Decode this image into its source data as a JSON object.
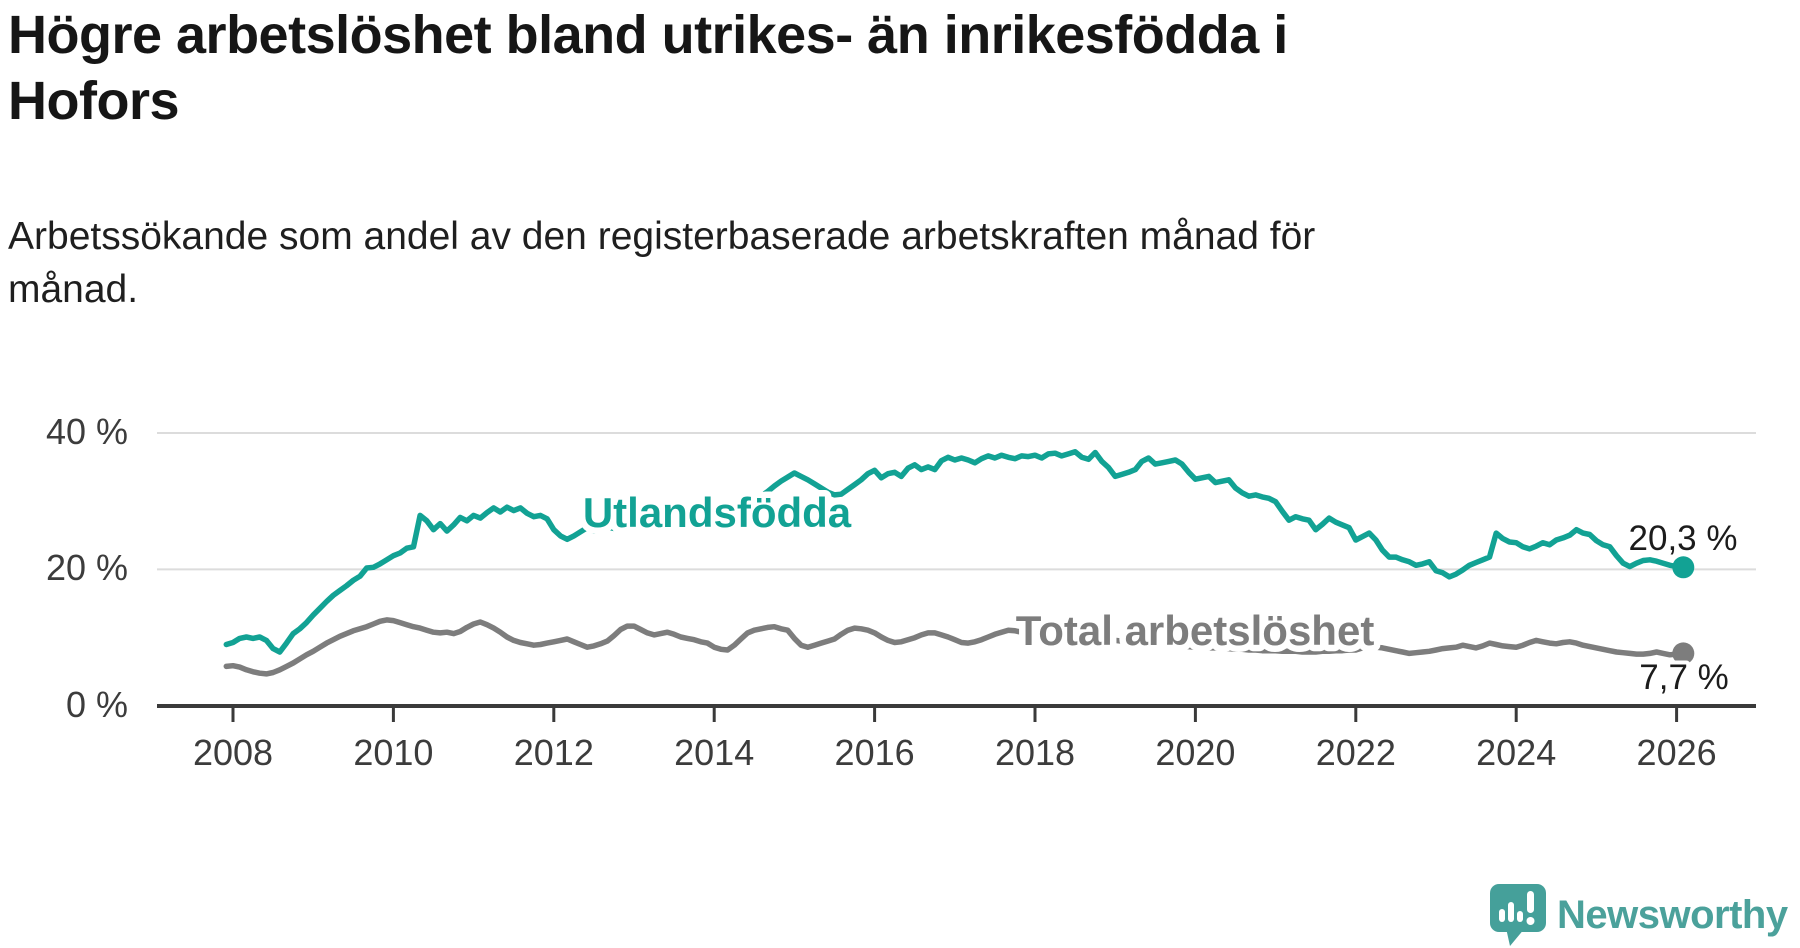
{
  "header": {
    "title_lines": [
      "Högre arbetslöshet bland utrikes- än inrikesfödda i",
      "Hofors"
    ],
    "subtitle_lines": [
      "Arbetssökande som andel av den registerbaserade arbetskraften månad för",
      "månad."
    ]
  },
  "branding": {
    "logo_text": "Newsworthy",
    "logo_icon": "speech-bubble-with-bar-chart-and-exclamation",
    "logo_color": "#45a09a"
  },
  "colors": {
    "foreign_born_line": "#12a294",
    "total_line": "#7d7d7d",
    "axis": "#3a3a3a",
    "gridline": "#dcdcdc",
    "value_label": "#1c1c1c"
  },
  "chart_data": {
    "type": "line",
    "title": "Högre arbetslöshet bland utrikes- än inrikesfödda i Hofors",
    "subtitle": "Arbetssökande som andel av den registerbaserade arbetskraften månad för månad.",
    "xlabel": "",
    "ylabel": "",
    "x_unit": "year",
    "y_unit": "%",
    "x_start": 2007.9167,
    "x_step": 0.0833,
    "xlim": [
      2007.05,
      2027.0
    ],
    "ylim": [
      0,
      42
    ],
    "grid": "horizontal",
    "legend_position": "inline-labels",
    "x_ticks": [
      2008,
      2010,
      2012,
      2014,
      2016,
      2018,
      2020,
      2022,
      2024,
      2026
    ],
    "x_tick_labels": [
      "2008",
      "2010",
      "2012",
      "2014",
      "2016",
      "2018",
      "2020",
      "2022",
      "2024",
      "2026"
    ],
    "y_ticks": [
      0,
      20,
      40
    ],
    "y_tick_labels": [
      "0 %",
      "20 %",
      "40 %"
    ],
    "series": [
      {
        "name": "Utlandsfödda",
        "color": "#12a294",
        "end_label": "20,3 %",
        "end_value": 20.3,
        "values": [
          9.0,
          9.3,
          9.9,
          10.1,
          9.9,
          10.1,
          9.6,
          8.4,
          7.9,
          9.2,
          10.6,
          11.3,
          12.2,
          13.3,
          14.3,
          15.3,
          16.2,
          16.9,
          17.6,
          18.4,
          19.0,
          20.2,
          20.3,
          20.8,
          21.4,
          22.0,
          22.4,
          23.1,
          23.3,
          27.9,
          27.1,
          25.8,
          26.7,
          25.6,
          26.5,
          27.6,
          27.1,
          27.9,
          27.5,
          28.3,
          29.0,
          28.4,
          29.1,
          28.6,
          29.0,
          28.2,
          27.7,
          27.9,
          27.4,
          25.8,
          24.9,
          24.4,
          24.9,
          25.5,
          26.1,
          25.6,
          25.9,
          26.2,
          26.0,
          26.3,
          26.5,
          26.6,
          26.9,
          27.1,
          26.8,
          27.3,
          27.6,
          27.4,
          27.9,
          28.1,
          28.4,
          28.2,
          28.6,
          28.8,
          28.5,
          29.0,
          29.2,
          29.4,
          29.6,
          30.1,
          30.7,
          31.4,
          32.2,
          32.9,
          33.5,
          34.1,
          33.6,
          33.1,
          32.5,
          31.9,
          31.3,
          30.9,
          31.0,
          31.7,
          32.4,
          33.1,
          34.0,
          34.5,
          33.4,
          34.0,
          34.2,
          33.6,
          34.8,
          35.3,
          34.6,
          35.0,
          34.6,
          35.9,
          36.4,
          36.0,
          36.3,
          36.0,
          35.6,
          36.2,
          36.6,
          36.3,
          36.7,
          36.4,
          36.2,
          36.6,
          36.5,
          36.7,
          36.3,
          36.9,
          37.0,
          36.6,
          36.9,
          37.2,
          36.4,
          36.1,
          37.1,
          35.8,
          34.9,
          33.6,
          33.9,
          34.2,
          34.6,
          35.8,
          36.3,
          35.4,
          35.6,
          35.8,
          36.0,
          35.4,
          34.2,
          33.2,
          33.4,
          33.6,
          32.7,
          32.9,
          33.1,
          31.9,
          31.2,
          30.7,
          30.9,
          30.6,
          30.4,
          29.9,
          28.5,
          27.2,
          27.7,
          27.4,
          27.2,
          25.8,
          26.6,
          27.5,
          26.9,
          26.5,
          26.1,
          24.3,
          24.8,
          25.3,
          24.3,
          22.8,
          21.8,
          21.8,
          21.4,
          21.1,
          20.6,
          20.8,
          21.1,
          19.8,
          19.5,
          18.9,
          19.3,
          19.9,
          20.6,
          21.0,
          21.4,
          21.8,
          25.3,
          24.5,
          24.0,
          23.9,
          23.3,
          23.0,
          23.4,
          23.9,
          23.6,
          24.3,
          24.6,
          25.0,
          25.8,
          25.3,
          25.1,
          24.2,
          23.6,
          23.3,
          22.0,
          20.9,
          20.4,
          20.9,
          21.3,
          21.4,
          21.2,
          20.9,
          20.6,
          20.4,
          20.3
        ]
      },
      {
        "name": "Total arbetslöshet",
        "color": "#7d7d7d",
        "end_label": "7,7 %",
        "end_value": 7.7,
        "values": [
          5.8,
          5.9,
          5.7,
          5.3,
          5.0,
          4.8,
          4.7,
          4.9,
          5.3,
          5.8,
          6.3,
          6.9,
          7.5,
          8.0,
          8.6,
          9.2,
          9.7,
          10.2,
          10.6,
          11.0,
          11.3,
          11.6,
          12.0,
          12.4,
          12.6,
          12.5,
          12.2,
          11.9,
          11.6,
          11.4,
          11.1,
          10.8,
          10.7,
          10.8,
          10.6,
          10.9,
          11.5,
          12.0,
          12.3,
          11.9,
          11.4,
          10.8,
          10.1,
          9.6,
          9.3,
          9.1,
          8.9,
          9.0,
          9.2,
          9.4,
          9.6,
          9.8,
          9.4,
          9.0,
          8.6,
          8.8,
          9.1,
          9.5,
          10.3,
          11.2,
          11.7,
          11.7,
          11.2,
          10.7,
          10.4,
          10.6,
          10.8,
          10.5,
          10.1,
          9.9,
          9.7,
          9.4,
          9.2,
          8.6,
          8.3,
          8.2,
          8.9,
          9.8,
          10.7,
          11.1,
          11.3,
          11.5,
          11.6,
          11.3,
          11.1,
          9.9,
          8.9,
          8.6,
          8.9,
          9.2,
          9.5,
          9.8,
          10.5,
          11.1,
          11.4,
          11.3,
          11.1,
          10.7,
          10.1,
          9.6,
          9.3,
          9.4,
          9.7,
          10.0,
          10.4,
          10.7,
          10.7,
          10.4,
          10.1,
          9.7,
          9.3,
          9.2,
          9.4,
          9.7,
          10.1,
          10.5,
          10.8,
          11.1,
          11.0,
          10.8,
          10.7,
          10.5,
          10.2,
          10.0,
          9.9,
          9.8,
          9.9,
          9.9,
          10.0,
          10.1,
          9.9,
          9.8,
          9.7,
          9.6,
          9.5,
          9.4,
          9.3,
          9.2,
          9.1,
          9.0,
          8.9,
          8.9,
          8.8,
          8.7,
          8.7,
          8.6,
          8.6,
          8.5,
          8.5,
          8.4,
          8.4,
          8.3,
          8.3,
          8.2,
          8.2,
          8.1,
          8.1,
          8.1,
          8.0,
          8.0,
          8.0,
          7.9,
          7.9,
          7.9,
          8.0,
          8.0,
          8.1,
          8.1,
          8.2,
          8.2,
          8.5,
          8.9,
          8.6,
          8.5,
          8.3,
          8.1,
          7.9,
          7.7,
          7.8,
          7.9,
          8.0,
          8.2,
          8.4,
          8.5,
          8.6,
          8.9,
          8.7,
          8.5,
          8.8,
          9.2,
          9.0,
          8.8,
          8.7,
          8.6,
          8.9,
          9.3,
          9.6,
          9.4,
          9.2,
          9.1,
          9.3,
          9.4,
          9.2,
          8.9,
          8.7,
          8.5,
          8.3,
          8.1,
          7.9,
          7.8,
          7.7,
          7.6,
          7.6,
          7.7,
          7.9,
          7.7,
          7.5,
          7.6,
          7.7
        ]
      }
    ]
  }
}
